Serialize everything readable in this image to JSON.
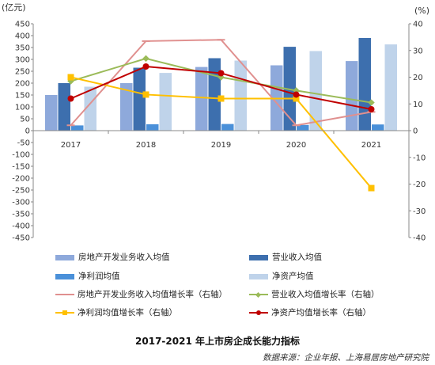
{
  "chart_data": {
    "type": "bar",
    "title": "2017-2021 年上市房企成长能力指标",
    "source": "数据来源：企业年报、上海易居房地产研究院",
    "left_unit": "(亿元)",
    "right_unit": "(%)",
    "categories": [
      "2017",
      "2018",
      "2019",
      "2020",
      "2021"
    ],
    "ylim_left": [
      -450,
      450
    ],
    "left_ticks": [
      "-450",
      "-400",
      "-350",
      "-300",
      "-250",
      "-200",
      "-150",
      "-100",
      "-50",
      "0",
      "50",
      "100",
      "150",
      "200",
      "250",
      "300",
      "350",
      "400",
      "450"
    ],
    "ylim_right": [
      -40,
      40
    ],
    "right_ticks": [
      "-40",
      "-30",
      "-20",
      "-10",
      "0",
      "10",
      "20",
      "30",
      "40"
    ],
    "legend_placement": "bottom",
    "bar_series": [
      {
        "name": "房地产开发业务收入均值",
        "color": "#8ea9db",
        "values": [
          150,
          200,
          268,
          275,
          293
        ]
      },
      {
        "name": "营业收入均值",
        "color": "#3d6fae",
        "values": [
          200,
          265,
          305,
          353,
          390
        ]
      },
      {
        "name": "净利润均值",
        "color": "#4a90d9",
        "values": [
          22,
          27,
          28,
          24,
          26
        ]
      },
      {
        "name": "净资产均值",
        "color": "#bfd3ea",
        "values": [
          185,
          243,
          295,
          335,
          363
        ]
      }
    ],
    "line_series": [
      {
        "name": "房地产开发业务收入均值增长率（右轴）",
        "color": "#e0908f",
        "marker": "dash",
        "values": [
          2.0,
          33.5,
          34.0,
          2.0,
          7.0
        ]
      },
      {
        "name": "营业收入均值增长率（右轴）",
        "color": "#9bbb59",
        "marker": "diamond",
        "values": [
          18.5,
          27.0,
          20.0,
          15.0,
          10.5
        ]
      },
      {
        "name": "净利润均值增长率（右轴）",
        "color": "#ffc000",
        "marker": "square",
        "values": [
          20.0,
          13.5,
          12.0,
          12.0,
          -21.5
        ]
      },
      {
        "name": "净资产均值增长率（右轴）",
        "color": "#c00000",
        "marker": "circle",
        "values": [
          12.0,
          24.0,
          21.5,
          13.5,
          8.0
        ]
      }
    ]
  }
}
